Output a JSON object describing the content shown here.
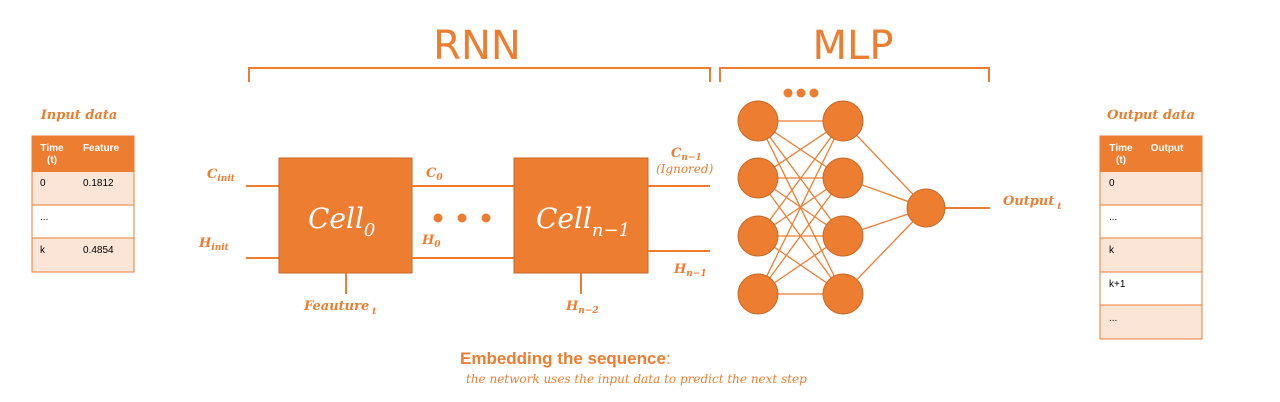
{
  "titles": {
    "rnn": "RNN",
    "mlp": "MLP"
  },
  "input_table": {
    "title": "Input data",
    "headers": {
      "time_line1": "Time",
      "time_line2": "(t)",
      "feature": "Feature"
    },
    "rows": [
      {
        "time": "0",
        "feature": "0.1812"
      },
      {
        "time": "...",
        "feature": ""
      },
      {
        "time": "k",
        "feature": "0.4854"
      }
    ]
  },
  "output_table": {
    "title": "Output data",
    "headers": {
      "time_line1": "Time",
      "time_line2": "(t)",
      "output": "Output"
    },
    "rows": [
      {
        "time": "0",
        "output": ""
      },
      {
        "time": "...",
        "output": ""
      },
      {
        "time": "k",
        "output": ""
      },
      {
        "time": "k+1",
        "output": ""
      },
      {
        "time": "...",
        "output": ""
      }
    ]
  },
  "rnn": {
    "cell0": {
      "base": "Cell",
      "sub": "0"
    },
    "cell_last": {
      "base": "Cell",
      "sub": "n−1"
    },
    "c_init": {
      "base": "C",
      "sub": "init"
    },
    "h_init": {
      "base": "H",
      "sub": "init"
    },
    "c0": {
      "base": "C",
      "sub": "0"
    },
    "h0": {
      "base": "H",
      "sub": "0"
    },
    "c_last": {
      "base": "C",
      "sub": "n−1"
    },
    "ignored": "(Ignored)",
    "h_last": {
      "base": "H",
      "sub": "n−1"
    },
    "h_prev": {
      "base": "H",
      "sub": "n−2"
    },
    "feature": {
      "base": "Feauture",
      "sub": "t"
    }
  },
  "mlp": {
    "output": {
      "base": "Output",
      "sub": "t"
    }
  },
  "caption": {
    "title": "Embedding the sequence",
    "colon": ":",
    "subtitle": "the network uses the input data to predict the next step"
  },
  "colors": {
    "accent": "#ED7D31",
    "row_light": "#FBE5D6",
    "white": "#FFFFFF"
  }
}
